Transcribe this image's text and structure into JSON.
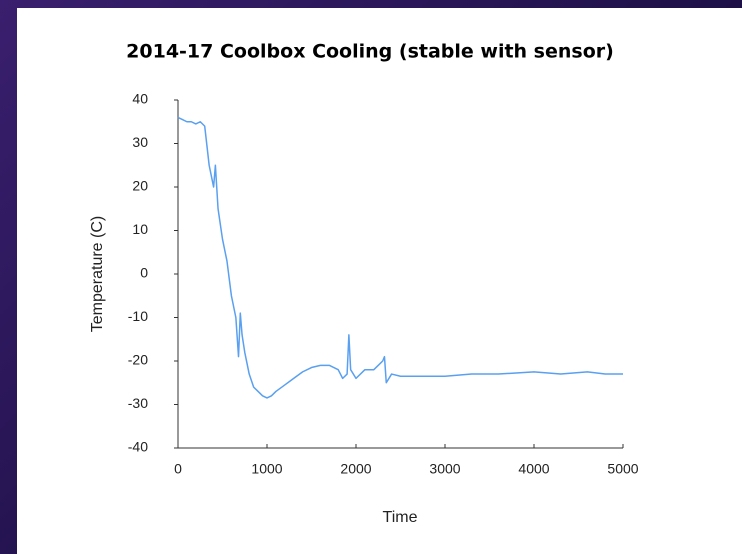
{
  "chart_data": {
    "type": "line",
    "title": "2014-17 Coolbox Cooling (stable with sensor)",
    "xlabel": "Time",
    "ylabel": "Temperature (C)",
    "x": [
      0,
      50,
      100,
      150,
      200,
      250,
      300,
      350,
      400,
      420,
      450,
      500,
      550,
      600,
      650,
      680,
      700,
      720,
      750,
      800,
      850,
      900,
      950,
      1000,
      1050,
      1100,
      1200,
      1300,
      1400,
      1500,
      1600,
      1700,
      1800,
      1850,
      1900,
      1920,
      1940,
      2000,
      2100,
      2200,
      2300,
      2320,
      2340,
      2400,
      2500,
      2700,
      3000,
      3300,
      3600,
      4000,
      4300,
      4600,
      4800,
      5000
    ],
    "series": [
      {
        "name": "Temperature",
        "color": "#5aa0f0",
        "values": [
          36,
          35.5,
          35,
          35,
          34.5,
          35,
          34,
          25,
          20,
          25,
          15,
          8,
          3,
          -5,
          -10,
          -19,
          -9,
          -14,
          -18,
          -23,
          -26,
          -27,
          -28,
          -28.5,
          -28,
          -27,
          -25.5,
          -24,
          -22.5,
          -21.5,
          -21,
          -21,
          -22,
          -24,
          -23,
          -14,
          -22,
          -24,
          -22,
          -22,
          -20,
          -19,
          -25,
          -23,
          -23.5,
          -23.5,
          -23.5,
          -23,
          -23,
          -22.5,
          -23,
          -22.5,
          -23,
          -23
        ]
      }
    ],
    "xlim": [
      0,
      5000
    ],
    "xticks": [
      0,
      1000,
      2000,
      3000,
      4000,
      5000
    ],
    "ylim": [
      -40,
      40
    ],
    "yticks": [
      -40,
      -30,
      -20,
      -10,
      0,
      10,
      20,
      30,
      40
    ]
  }
}
